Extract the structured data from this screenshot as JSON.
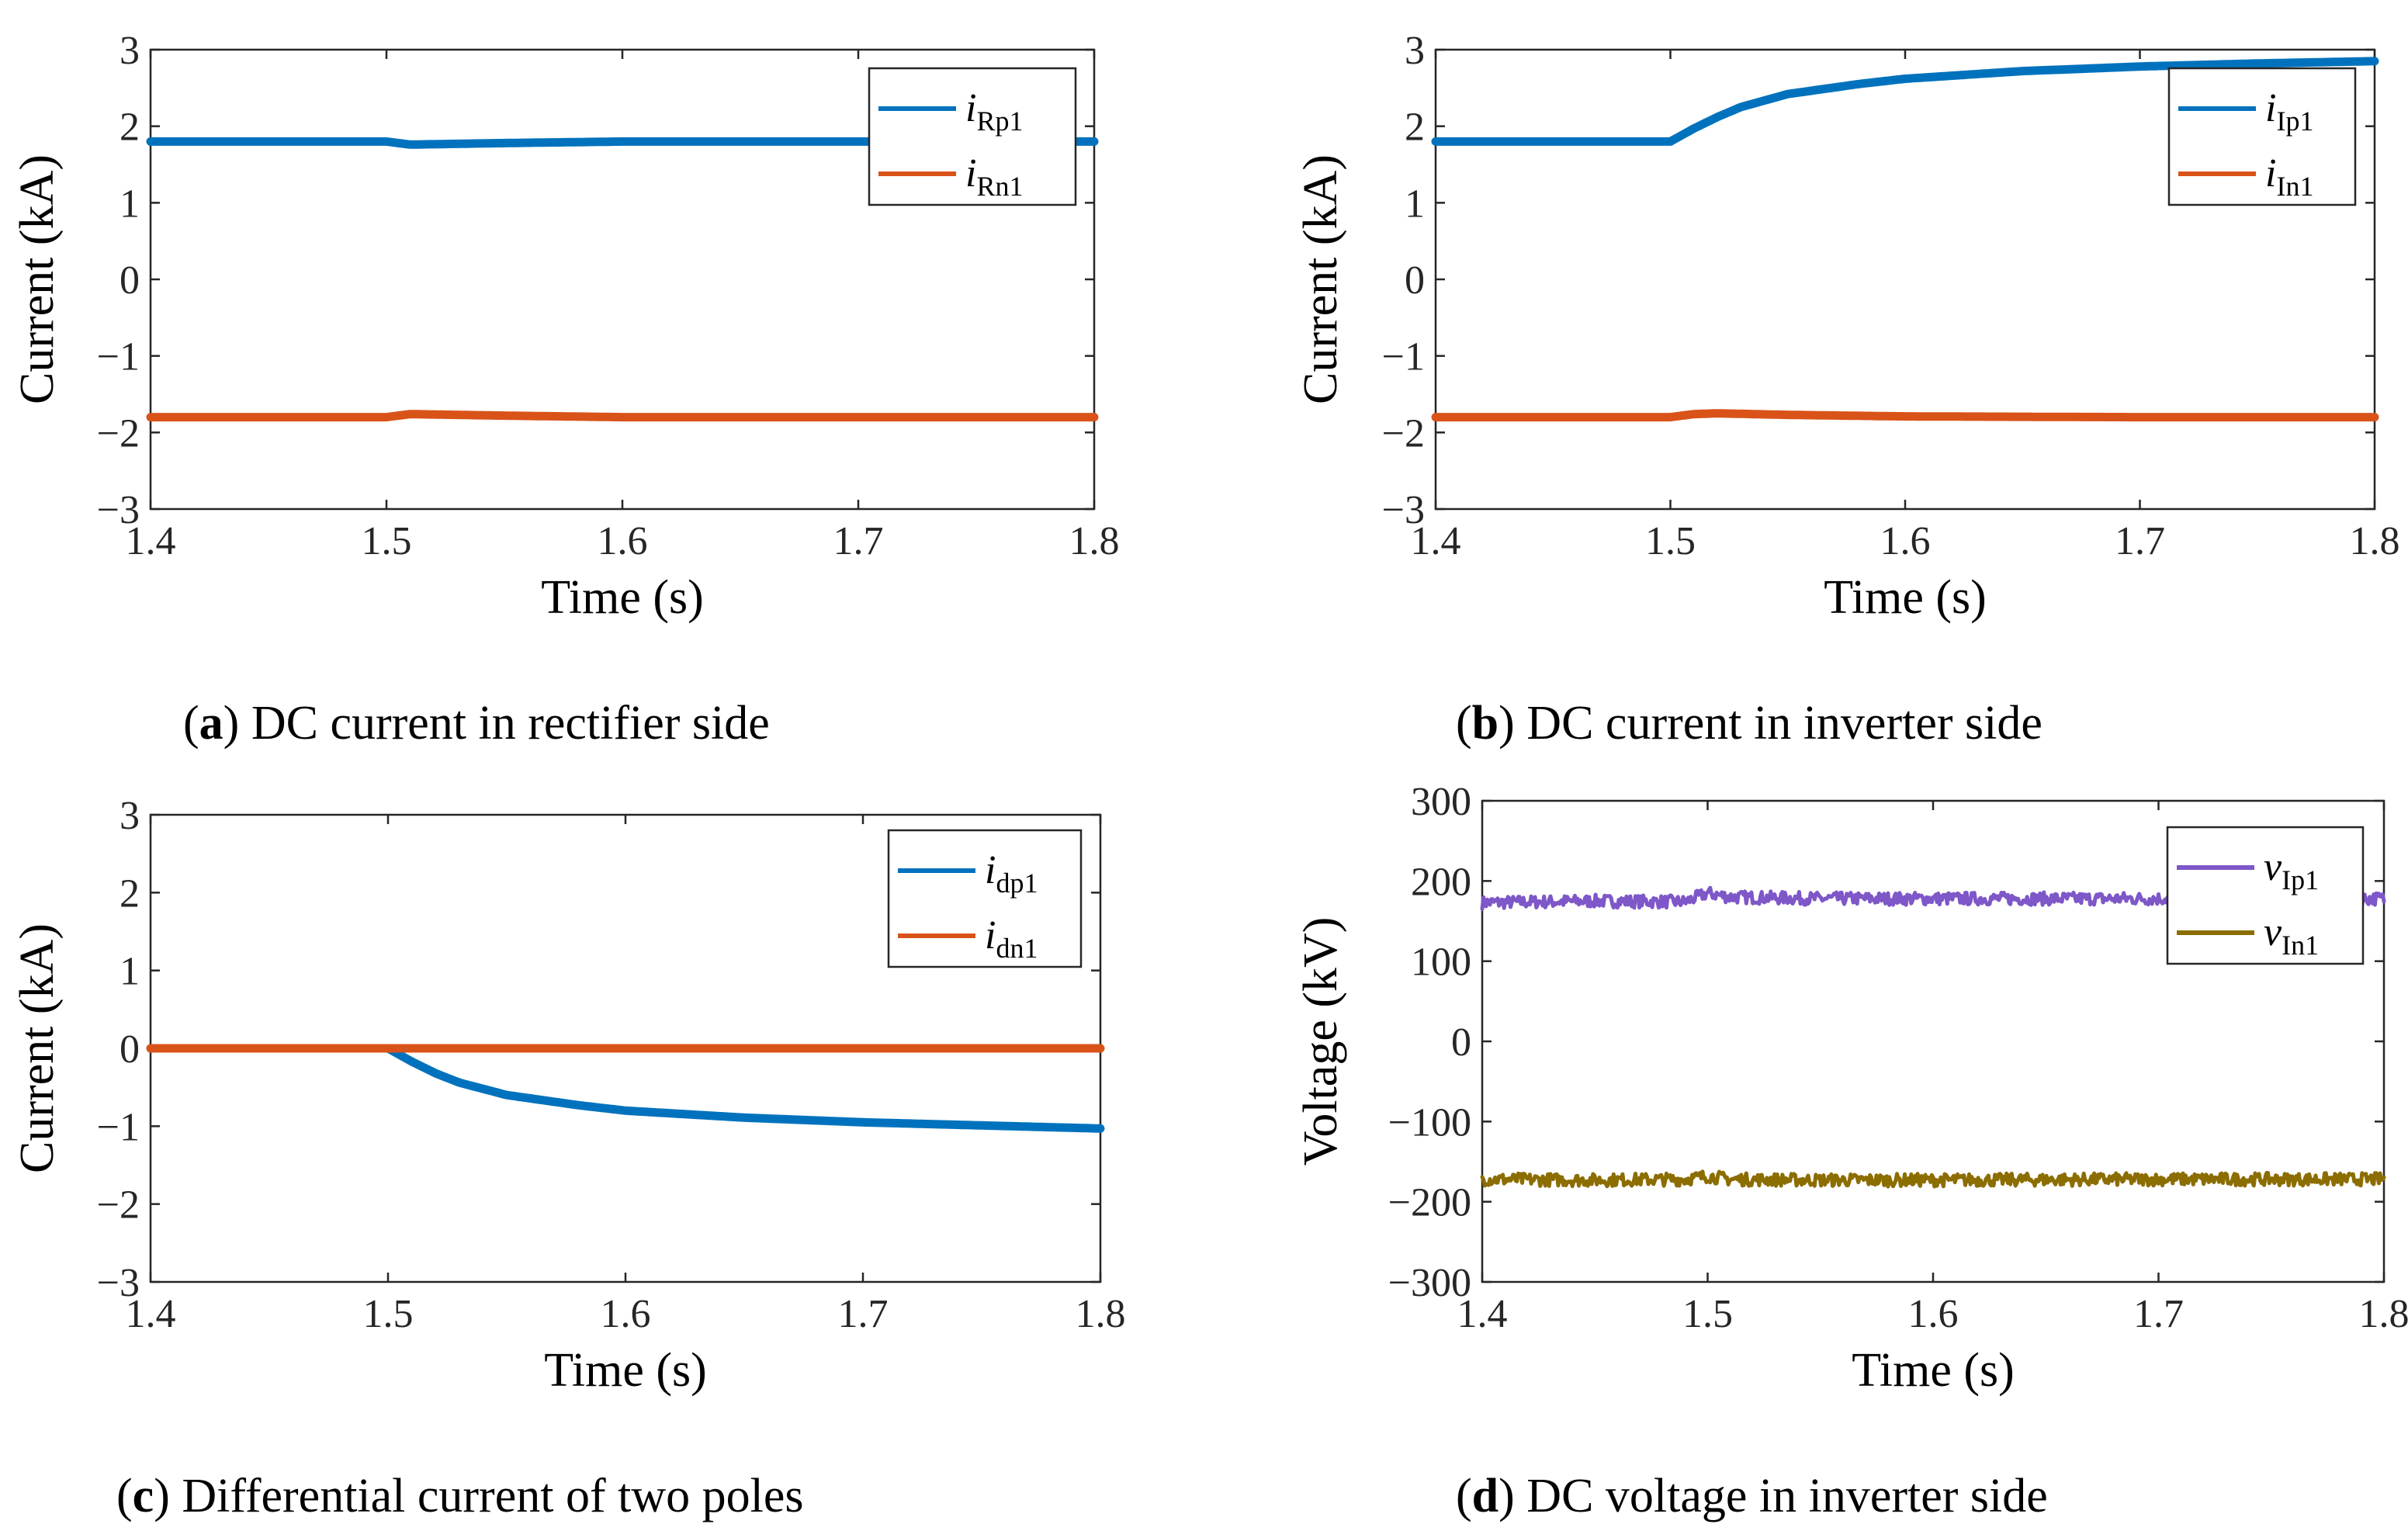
{
  "chart_data": [
    {
      "type": "line",
      "panel": "a",
      "caption": {
        "letter": "a",
        "text": " DC current in rectifier side"
      },
      "xlabel": "Time (s)",
      "ylabel": "Current (kA)",
      "xlim": [
        1.4,
        1.8
      ],
      "ylim": [
        -3,
        3
      ],
      "xticks": [
        1.4,
        1.5,
        1.6,
        1.7,
        1.8
      ],
      "xtick_labels": [
        "1.4",
        "1.5",
        "1.6",
        "1.7",
        "1.8"
      ],
      "yticks": [
        -3,
        -2,
        -1,
        0,
        1,
        2,
        3
      ],
      "ytick_labels": [
        "−3",
        "−2",
        "−1",
        "0",
        "1",
        "2",
        "3"
      ],
      "grid": false,
      "legend_position": "top-right",
      "series": [
        {
          "name": "i",
          "name_sub": "Rp1",
          "color": "#0072BD",
          "x": [
            1.4,
            1.45,
            1.5,
            1.505,
            1.51,
            1.53,
            1.55,
            1.6,
            1.7,
            1.8
          ],
          "y": [
            1.8,
            1.8,
            1.8,
            1.78,
            1.76,
            1.77,
            1.78,
            1.8,
            1.8,
            1.8
          ]
        },
        {
          "name": "i",
          "name_sub": "Rn1",
          "color": "#D95319",
          "x": [
            1.4,
            1.45,
            1.5,
            1.505,
            1.51,
            1.53,
            1.55,
            1.6,
            1.7,
            1.8
          ],
          "y": [
            -1.8,
            -1.8,
            -1.8,
            -1.78,
            -1.76,
            -1.77,
            -1.78,
            -1.8,
            -1.8,
            -1.8
          ]
        }
      ]
    },
    {
      "type": "line",
      "panel": "b",
      "caption": {
        "letter": "b",
        "text": " DC current in inverter side"
      },
      "xlabel": "Time (s)",
      "ylabel": "Current (kA)",
      "xlim": [
        1.4,
        1.8
      ],
      "ylim": [
        -3,
        3
      ],
      "xticks": [
        1.4,
        1.5,
        1.6,
        1.7,
        1.8
      ],
      "xtick_labels": [
        "1.4",
        "1.5",
        "1.6",
        "1.7",
        "1.8"
      ],
      "yticks": [
        -3,
        -2,
        -1,
        0,
        1,
        2,
        3
      ],
      "ytick_labels": [
        "−3",
        "−2",
        "−1",
        "0",
        "1",
        "2",
        "3"
      ],
      "grid": false,
      "legend_position": "top-right",
      "series": [
        {
          "name": "i",
          "name_sub": "Ip1",
          "color": "#0072BD",
          "x": [
            1.4,
            1.45,
            1.5,
            1.51,
            1.52,
            1.53,
            1.55,
            1.58,
            1.6,
            1.65,
            1.7,
            1.75,
            1.8
          ],
          "y": [
            1.8,
            1.8,
            1.8,
            1.97,
            2.12,
            2.25,
            2.42,
            2.55,
            2.62,
            2.72,
            2.78,
            2.82,
            2.85
          ]
        },
        {
          "name": "i",
          "name_sub": "In1",
          "color": "#D95319",
          "x": [
            1.4,
            1.45,
            1.5,
            1.51,
            1.52,
            1.55,
            1.6,
            1.7,
            1.8
          ],
          "y": [
            -1.8,
            -1.8,
            -1.8,
            -1.76,
            -1.75,
            -1.77,
            -1.79,
            -1.8,
            -1.8
          ]
        }
      ]
    },
    {
      "type": "line",
      "panel": "c",
      "caption": {
        "letter": "c",
        "text": " Differential current of two poles"
      },
      "xlabel": "Time (s)",
      "ylabel": "Current (kA)",
      "xlim": [
        1.4,
        1.8
      ],
      "ylim": [
        -3,
        3
      ],
      "xticks": [
        1.4,
        1.5,
        1.6,
        1.7,
        1.8
      ],
      "xtick_labels": [
        "1.4",
        "1.5",
        "1.6",
        "1.7",
        "1.8"
      ],
      "yticks": [
        -3,
        -2,
        -1,
        0,
        1,
        2,
        3
      ],
      "ytick_labels": [
        "−3",
        "−2",
        "−1",
        "0",
        "1",
        "2",
        "3"
      ],
      "grid": false,
      "legend_position": "top-right",
      "series": [
        {
          "name": "i",
          "name_sub": "dp1",
          "color": "#0072BD",
          "x": [
            1.4,
            1.45,
            1.5,
            1.51,
            1.52,
            1.53,
            1.55,
            1.58,
            1.6,
            1.65,
            1.7,
            1.75,
            1.8
          ],
          "y": [
            0,
            0,
            0,
            -0.17,
            -0.32,
            -0.44,
            -0.6,
            -0.73,
            -0.8,
            -0.89,
            -0.95,
            -0.99,
            -1.03
          ]
        },
        {
          "name": "i",
          "name_sub": "dn1",
          "color": "#D95319",
          "x": [
            1.4,
            1.5,
            1.6,
            1.7,
            1.8
          ],
          "y": [
            0,
            0,
            0,
            0,
            0
          ]
        }
      ]
    },
    {
      "type": "line",
      "panel": "d",
      "caption": {
        "letter": "d",
        "text": " DC voltage in inverter side"
      },
      "xlabel": "Time (s)",
      "ylabel": "Voltage (kV)",
      "xlim": [
        1.4,
        1.8
      ],
      "ylim": [
        -300,
        300
      ],
      "xticks": [
        1.4,
        1.5,
        1.6,
        1.7,
        1.8
      ],
      "xtick_labels": [
        "1.4",
        "1.5",
        "1.6",
        "1.7",
        "1.8"
      ],
      "yticks": [
        -300,
        -200,
        -100,
        0,
        100,
        200,
        300
      ],
      "ytick_labels": [
        "−300",
        "−200",
        "−100",
        "0",
        "100",
        "200",
        "300"
      ],
      "grid": false,
      "legend_position": "top-right",
      "series": [
        {
          "name": "v",
          "name_sub": "Ip1",
          "color": "#7E57C8",
          "x": [
            1.4,
            1.45,
            1.49,
            1.5,
            1.51,
            1.55,
            1.6,
            1.7,
            1.8
          ],
          "y": [
            173,
            175,
            174,
            185,
            180,
            178,
            178,
            178,
            178
          ],
          "noise": 8
        },
        {
          "name": "v",
          "name_sub": "In1",
          "color": "#8C6D00",
          "x": [
            1.4,
            1.45,
            1.49,
            1.5,
            1.51,
            1.55,
            1.6,
            1.7,
            1.8
          ],
          "y": [
            -172,
            -173,
            -172,
            -168,
            -172,
            -173,
            -173,
            -172,
            -172
          ],
          "noise": 8
        }
      ]
    }
  ]
}
